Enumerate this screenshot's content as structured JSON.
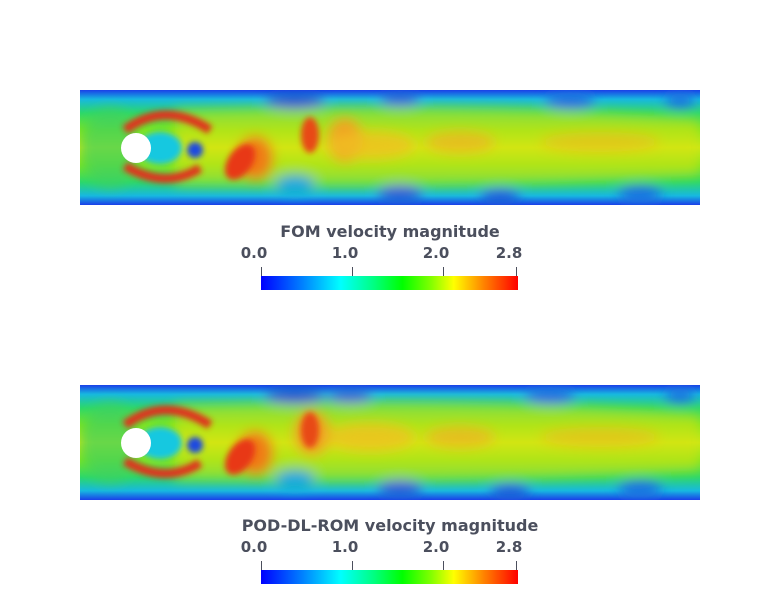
{
  "panels": [
    {
      "title": "FOM velocity magnitude",
      "ticks": [
        "0.0",
        "1.0",
        "2.0",
        "2.8"
      ]
    },
    {
      "title": "POD-DL-ROM velocity magnitude",
      "ticks": [
        "0.0",
        "1.0",
        "2.0",
        "2.8"
      ]
    }
  ],
  "colormap": {
    "range": [
      0.0,
      2.8
    ],
    "colors": [
      "#0000ff",
      "#00ffff",
      "#00ff00",
      "#ffff00",
      "#ff0000"
    ]
  }
}
